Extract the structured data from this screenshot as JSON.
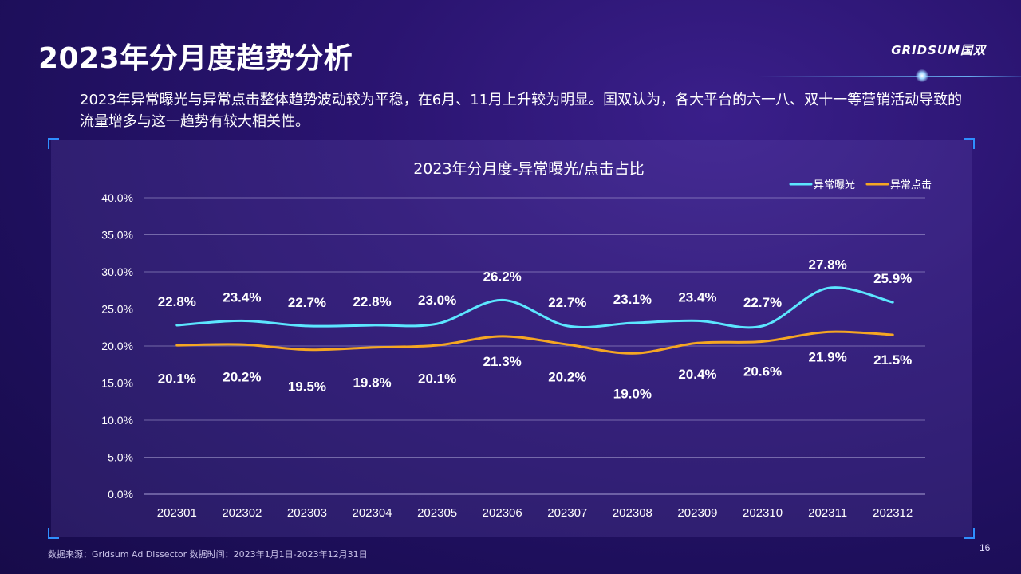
{
  "slide": {
    "title": "2023年分月度趋势分析",
    "brand": "GRIDSUM国双",
    "summary": "2023年异常曝光与异常点击整体趋势波动较为平稳，在6月、11月上升较为明显。国双认为，各大平台的六一八、双十一等营销活动导致的流量增多与这一趋势有较大相关性。",
    "footnote": "数据来源：Gridsum Ad Dissector 数据时间：2023年1月1日-2023年12月31日",
    "page_number": "16"
  },
  "colors": {
    "background": "#1e0f5c",
    "exposure_series": "#5ce6ff",
    "click_series": "#f5a623",
    "accent_corner": "#2f8fff"
  },
  "chart_data": {
    "type": "line",
    "title": "2023年分月度-异常曝光/点击占比",
    "legend_position": "top-right",
    "grid": true,
    "ylim": [
      0,
      40
    ],
    "ytick_labels": [
      "0.0%",
      "5.0%",
      "10.0%",
      "15.0%",
      "20.0%",
      "25.0%",
      "30.0%",
      "35.0%",
      "40.0%"
    ],
    "categories": [
      "202301",
      "202302",
      "202303",
      "202304",
      "202305",
      "202306",
      "202307",
      "202308",
      "202309",
      "202310",
      "202311",
      "202312"
    ],
    "series": [
      {
        "name": "异常曝光",
        "values": [
          22.8,
          23.4,
          22.7,
          22.8,
          23.0,
          26.2,
          22.7,
          23.1,
          23.4,
          22.7,
          27.8,
          25.9
        ],
        "labels": [
          "22.8%",
          "23.4%",
          "22.7%",
          "22.8%",
          "23.0%",
          "26.2%",
          "22.7%",
          "23.1%",
          "23.4%",
          "22.7%",
          "27.8%",
          "25.9%"
        ]
      },
      {
        "name": "异常点击",
        "values": [
          20.1,
          20.2,
          19.5,
          19.8,
          20.1,
          21.3,
          20.2,
          19.0,
          20.4,
          20.6,
          21.9,
          21.5
        ],
        "labels": [
          "20.1%",
          "20.2%",
          "19.5%",
          "19.8%",
          "20.1%",
          "21.3%",
          "20.2%",
          "19.0%",
          "20.4%",
          "20.6%",
          "21.9%",
          "21.5%"
        ]
      }
    ]
  }
}
